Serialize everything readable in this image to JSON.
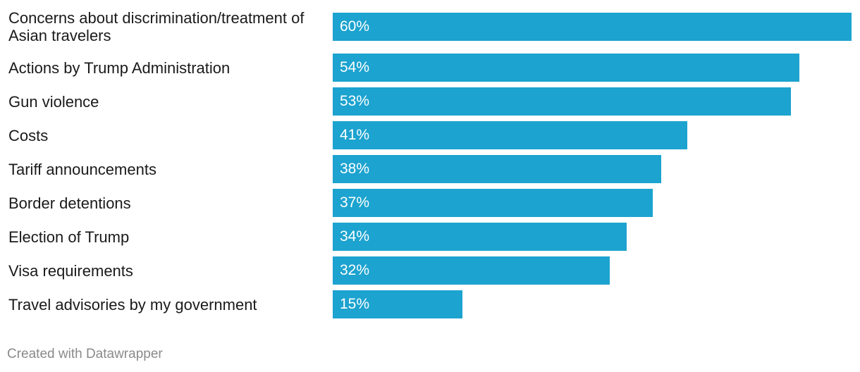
{
  "chart_data": {
    "type": "bar",
    "orientation": "horizontal",
    "categories": [
      "Concerns about discrimination/treatment of Asian travelers",
      "Actions by Trump Administration",
      "Gun violence",
      "Costs",
      "Tariff announcements",
      "Border detentions",
      "Election of Trump",
      "Visa requirements",
      "Travel advisories by my government"
    ],
    "values": [
      60,
      54,
      53,
      41,
      38,
      37,
      34,
      32,
      15
    ],
    "value_labels": [
      "60%",
      "54%",
      "53%",
      "41%",
      "38%",
      "37%",
      "34%",
      "32%",
      "15%"
    ],
    "xlim": [
      0,
      60
    ],
    "grid": false,
    "bar_color": "#1ca3cf",
    "value_label_color": "#ffffff"
  },
  "footer": {
    "credit": "Created with Datawrapper"
  }
}
